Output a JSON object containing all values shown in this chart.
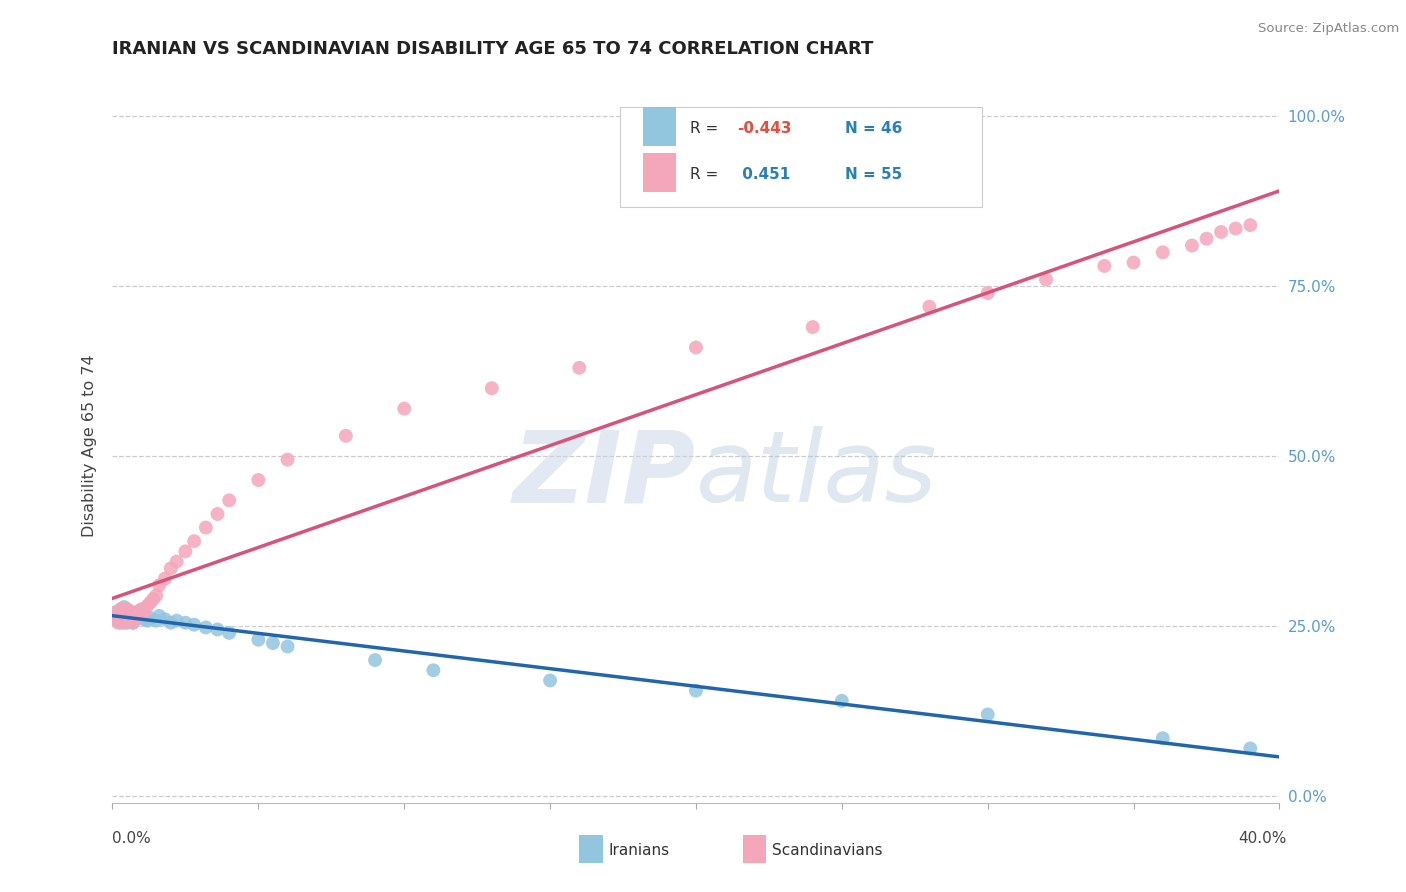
{
  "title": "IRANIAN VS SCANDINAVIAN DISABILITY AGE 65 TO 74 CORRELATION CHART",
  "source": "Source: ZipAtlas.com",
  "ylabel": "Disability Age 65 to 74",
  "legend_label1": "Iranians",
  "legend_label2": "Scandinavians",
  "R_iranian": -0.443,
  "N_iranian": 46,
  "R_scandinavian": 0.451,
  "N_scandinavian": 55,
  "xlim": [
    0.0,
    0.4
  ],
  "ylim": [
    -0.01,
    1.04
  ],
  "color_iranian": "#92c5de",
  "color_scandinavian": "#f4a6bb",
  "line_color_iranian": "#2166ac",
  "line_color_scandinavian": "#d6537a",
  "watermark_color": "#c8d5e8",
  "title_color": "#222222",
  "source_color": "#888888",
  "gridline_color": "#cccccc",
  "ytick_vals": [
    0.0,
    0.25,
    0.5,
    0.75,
    1.0
  ],
  "ytick_labels": [
    "0.0%",
    "25.0%",
    "50.0%",
    "75.0%",
    "100.0%"
  ],
  "iran_x": [
    0.001,
    0.001,
    0.002,
    0.002,
    0.002,
    0.003,
    0.003,
    0.003,
    0.004,
    0.004,
    0.004,
    0.005,
    0.005,
    0.005,
    0.006,
    0.006,
    0.007,
    0.007,
    0.008,
    0.008,
    0.009,
    0.01,
    0.011,
    0.012,
    0.013,
    0.015,
    0.016,
    0.018,
    0.02,
    0.022,
    0.025,
    0.028,
    0.032,
    0.036,
    0.04,
    0.05,
    0.055,
    0.06,
    0.09,
    0.11,
    0.15,
    0.2,
    0.25,
    0.3,
    0.36,
    0.39
  ],
  "iran_y": [
    0.27,
    0.26,
    0.265,
    0.272,
    0.258,
    0.268,
    0.275,
    0.255,
    0.27,
    0.262,
    0.278,
    0.268,
    0.255,
    0.272,
    0.26,
    0.268,
    0.265,
    0.255,
    0.26,
    0.268,
    0.265,
    0.268,
    0.26,
    0.258,
    0.262,
    0.258,
    0.265,
    0.26,
    0.255,
    0.258,
    0.255,
    0.252,
    0.248,
    0.245,
    0.24,
    0.23,
    0.225,
    0.22,
    0.2,
    0.185,
    0.17,
    0.155,
    0.14,
    0.12,
    0.085,
    0.07
  ],
  "scan_x": [
    0.001,
    0.001,
    0.002,
    0.002,
    0.003,
    0.003,
    0.003,
    0.004,
    0.004,
    0.005,
    0.005,
    0.005,
    0.006,
    0.006,
    0.007,
    0.007,
    0.008,
    0.008,
    0.009,
    0.009,
    0.01,
    0.01,
    0.011,
    0.012,
    0.013,
    0.014,
    0.015,
    0.016,
    0.018,
    0.02,
    0.022,
    0.025,
    0.028,
    0.032,
    0.036,
    0.04,
    0.05,
    0.06,
    0.08,
    0.1,
    0.13,
    0.16,
    0.2,
    0.24,
    0.28,
    0.3,
    0.32,
    0.34,
    0.35,
    0.36,
    0.37,
    0.375,
    0.38,
    0.385,
    0.39
  ],
  "scan_y": [
    0.27,
    0.26,
    0.268,
    0.255,
    0.272,
    0.26,
    0.275,
    0.265,
    0.255,
    0.27,
    0.26,
    0.275,
    0.265,
    0.272,
    0.268,
    0.255,
    0.268,
    0.26,
    0.272,
    0.265,
    0.268,
    0.275,
    0.272,
    0.28,
    0.285,
    0.29,
    0.295,
    0.31,
    0.32,
    0.335,
    0.345,
    0.36,
    0.375,
    0.395,
    0.415,
    0.435,
    0.465,
    0.495,
    0.53,
    0.57,
    0.6,
    0.63,
    0.66,
    0.69,
    0.72,
    0.74,
    0.76,
    0.78,
    0.785,
    0.8,
    0.81,
    0.82,
    0.83,
    0.835,
    0.84
  ]
}
